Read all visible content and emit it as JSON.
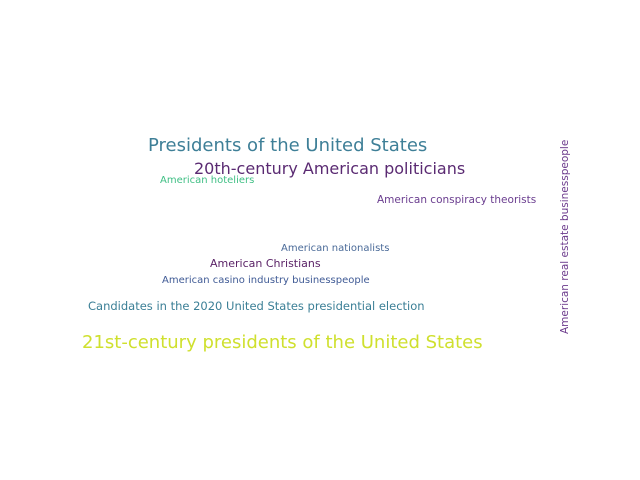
{
  "words": [
    {
      "text": "Presidents of the United States",
      "color": "#3e7f97"
    },
    {
      "text": "20th-century American politicians",
      "color": "#5a2a72"
    },
    {
      "text": "American hoteliers",
      "color": "#3fbf84"
    },
    {
      "text": "American conspiracy theorists",
      "color": "#6a3d8f"
    },
    {
      "text": "American nationalists",
      "color": "#4a6a98"
    },
    {
      "text": "American Christians",
      "color": "#5b2367"
    },
    {
      "text": "American casino industry businesspeople",
      "color": "#3f5a95"
    },
    {
      "text": "Candidates in the 2020 United States presidential election",
      "color": "#3b7f96"
    },
    {
      "text": "21st-century presidents of the United States",
      "color": "#cfe02e"
    },
    {
      "text": "American real estate businesspeople",
      "color": "#6b3a8c"
    }
  ]
}
